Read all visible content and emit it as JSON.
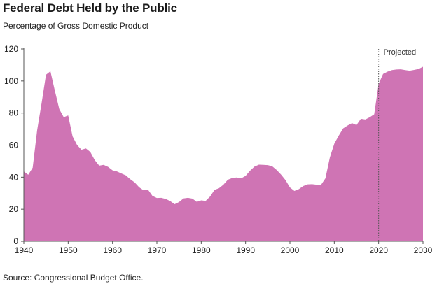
{
  "title": "Federal Debt Held by the Public",
  "subtitle": "Percentage of Gross Domestic Product",
  "source": "Source: Congressional Budget Office.",
  "colors": {
    "area": "#cf74b4",
    "axis": "#555555",
    "projection_line": "#555555"
  },
  "chart_data": {
    "type": "area",
    "title": "Federal Debt Held by the Public",
    "subtitle": "Percentage of Gross Domestic Product",
    "xlabel": "",
    "ylabel": "",
    "xlim": [
      1940,
      2030
    ],
    "ylim": [
      0,
      120
    ],
    "x_ticks": [
      1940,
      1950,
      1960,
      1970,
      1980,
      1990,
      2000,
      2010,
      2020,
      2030
    ],
    "y_ticks": [
      0,
      20,
      40,
      60,
      80,
      100,
      120
    ],
    "grid": false,
    "projection_start": 2020,
    "annotation": "Projected",
    "x": [
      1940,
      1941,
      1942,
      1943,
      1944,
      1945,
      1946,
      1947,
      1948,
      1949,
      1950,
      1951,
      1952,
      1953,
      1954,
      1955,
      1956,
      1957,
      1958,
      1959,
      1960,
      1961,
      1962,
      1963,
      1964,
      1965,
      1966,
      1967,
      1968,
      1969,
      1970,
      1971,
      1972,
      1973,
      1974,
      1975,
      1976,
      1977,
      1978,
      1979,
      1980,
      1981,
      1982,
      1983,
      1984,
      1985,
      1986,
      1987,
      1988,
      1989,
      1990,
      1991,
      1992,
      1993,
      1994,
      1995,
      1996,
      1997,
      1998,
      1999,
      2000,
      2001,
      2002,
      2003,
      2004,
      2005,
      2006,
      2007,
      2008,
      2009,
      2010,
      2011,
      2012,
      2013,
      2014,
      2015,
      2016,
      2017,
      2018,
      2019,
      2020,
      2021,
      2022,
      2023,
      2024,
      2025,
      2026,
      2027,
      2028,
      2029,
      2030
    ],
    "values": [
      43.6,
      41.5,
      45.9,
      69.2,
      86.0,
      103.9,
      106.1,
      93.9,
      82.4,
      77.4,
      78.5,
      65.4,
      60.1,
      57.1,
      57.9,
      55.7,
      50.6,
      47.2,
      47.7,
      46.4,
      44.3,
      43.6,
      42.3,
      41.1,
      38.7,
      36.7,
      33.7,
      31.8,
      32.2,
      28.3,
      27.0,
      27.1,
      26.4,
      25.1,
      23.1,
      24.5,
      26.7,
      27.1,
      26.6,
      24.6,
      25.5,
      25.2,
      27.9,
      32.1,
      33.1,
      35.3,
      38.4,
      39.5,
      39.8,
      39.3,
      40.8,
      44.0,
      46.6,
      47.8,
      47.7,
      47.5,
      46.8,
      44.5,
      41.6,
      38.2,
      33.6,
      31.4,
      32.5,
      34.5,
      35.5,
      35.6,
      35.3,
      35.2,
      39.3,
      52.3,
      60.9,
      65.9,
      70.4,
      72.2,
      73.7,
      72.5,
      76.4,
      76.0,
      77.4,
      79.2,
      98.2,
      104.4,
      105.8,
      106.8,
      107.2,
      107.3,
      106.8,
      106.4,
      106.9,
      107.5,
      108.9
    ]
  }
}
